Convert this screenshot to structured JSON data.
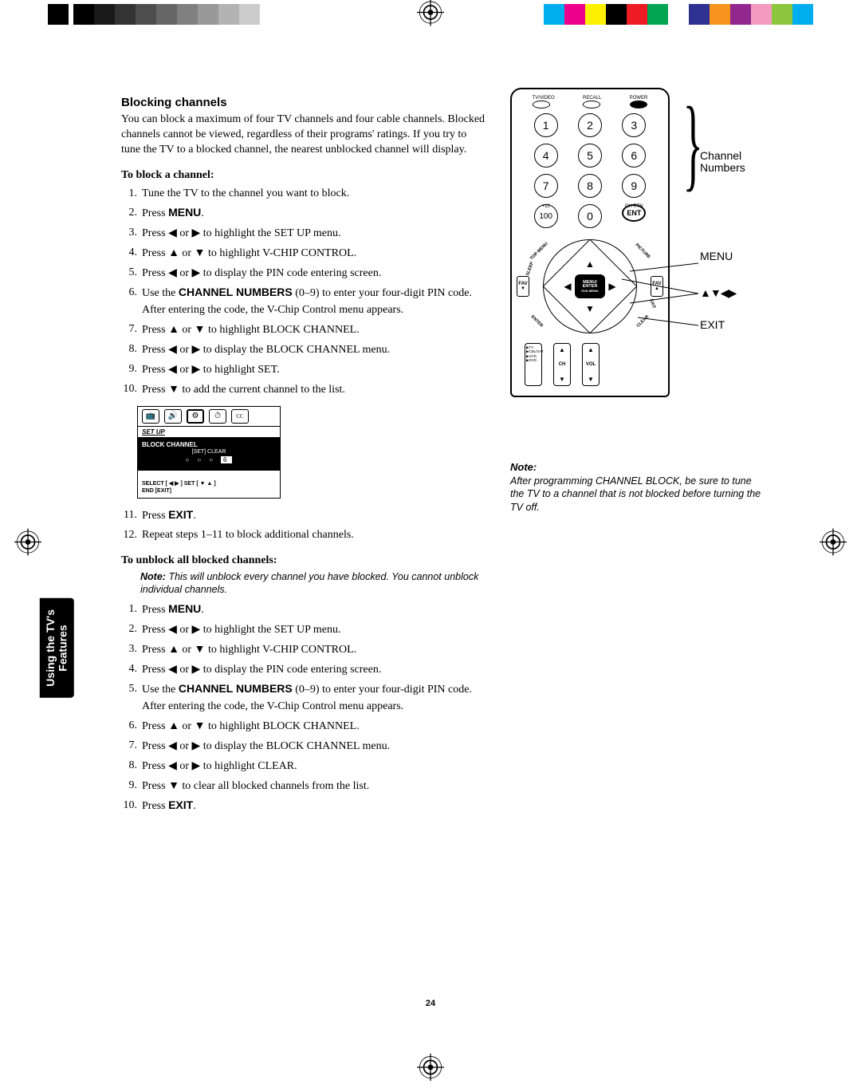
{
  "reg_colors": {
    "grays": [
      "#000000",
      "#1a1a1a",
      "#333333",
      "#4d4d4d",
      "#666666",
      "#808080",
      "#999999",
      "#b3b3b3",
      "#cccccc",
      "#ffffff"
    ],
    "hues": [
      "#00aeef",
      "#ec008c",
      "#fff200",
      "#000000",
      "#ed1c24",
      "#00a651",
      "#ffffff",
      "#2e3192",
      "#f7941d",
      "#92278f",
      "#f49ac1",
      "#8dc63f",
      "#00adee"
    ]
  },
  "heading": "Blocking channels",
  "intro": "You can block a maximum of four TV channels and four cable channels. Blocked channels cannot be viewed, regardless of their programs' ratings. If you try to tune the TV to a blocked channel, the nearest unblocked channel will display.",
  "block": {
    "subhead": "To block a channel:",
    "steps": [
      "Tune the TV to the channel you want to block.",
      "Press <span class='sans bold'>MENU</span>.",
      "Press <span class='arrow'>◀</span> or <span class='arrow'>▶</span> to highlight the SET UP menu.",
      "Press <span class='arrow'>▲</span> or <span class='arrow'>▼</span> to highlight V-CHIP CONTROL.",
      "Press <span class='arrow'>◀</span> or <span class='arrow'>▶</span> to display the PIN code entering screen.",
      "Use the <span class='sans bold'>CHANNEL NUMBERS</span> (0–9) to enter your four-digit PIN code. After entering the code, the V-Chip Control menu appears.",
      "Press <span class='arrow'>▲</span> or <span class='arrow'>▼</span> to highlight BLOCK CHANNEL.",
      "Press <span class='arrow'>◀</span> or <span class='arrow'>▶</span> to display the BLOCK CHANNEL menu.",
      "Press <span class='arrow'>◀</span> or <span class='arrow'>▶</span> to highlight SET.",
      "Press <span class='arrow'>▼</span> to add the current channel to the list."
    ],
    "steps_cont": [
      "Press <span class='sans bold'>EXIT</span>.",
      "Repeat steps 1–11 to block additional channels."
    ]
  },
  "osd": {
    "title": "SET UP",
    "row1": "BLOCK CHANNEL",
    "row2_pre": "[SET]  CLEAR",
    "row2_vals": [
      "○",
      "○",
      "○",
      "6"
    ],
    "foot1": "SELECT [ ◀  ▶ ]    SET [ ▼  ▲ ]",
    "foot2": "END [EXIT]"
  },
  "unblock": {
    "subhead": "To unblock all blocked channels:",
    "note": "This will unblock every channel you have blocked. You cannot unblock individual channels.",
    "steps": [
      "Press <span class='sans bold'>MENU</span>.",
      "Press <span class='arrow'>◀</span> or <span class='arrow'>▶</span> to highlight the SET UP menu.",
      "Press <span class='arrow'>▲</span> or <span class='arrow'>▼</span> to highlight V-CHIP CONTROL.",
      "Press <span class='arrow'>◀</span> or <span class='arrow'>▶</span> to display the PIN code entering screen.",
      "Use the <span class='sans bold'>CHANNEL NUMBERS</span> (0–9) to enter your four-digit PIN code. After entering the code, the V-Chip Control menu appears.",
      "Press <span class='arrow'>▲</span> or <span class='arrow'>▼</span> to highlight BLOCK CHANNEL.",
      "Press <span class='arrow'>◀</span> or <span class='arrow'>▶</span> to display the BLOCK CHANNEL menu.",
      "Press <span class='arrow'>◀</span> or <span class='arrow'>▶</span> to highlight CLEAR.",
      "Press <span class='arrow'>▼</span> to clear all blocked channels from the list.",
      "Press <span class='sans bold'>EXIT</span>."
    ]
  },
  "right_note": {
    "title": "Note:",
    "body": "After programming CHANNEL BLOCK, be sure to tune the TV to a channel that is not blocked before turning the TV off."
  },
  "remote": {
    "toplabels": [
      "TV/VIDEO",
      "RECALL",
      "POWER"
    ],
    "small_labels": {
      "plus10": "+10",
      "chrtn": "CH RTN"
    },
    "keypad": [
      "1",
      "2",
      "3",
      "4",
      "5",
      "6",
      "7",
      "8",
      "9",
      "100",
      "0",
      "ENT"
    ],
    "center": [
      "MENU/",
      "ENTER",
      "DVD MENU"
    ],
    "diag": {
      "tl": "TOP MENU",
      "tr": "PICTURE",
      "bl": "ENTER",
      "br": "CLEAR",
      "sl": "SLEEP",
      "sx": "EXIT"
    },
    "fav": "FAV",
    "selector": "▶TV\n▶CBL/SAT\n▶VCR\n▶DVD",
    "rockers": [
      {
        "mid": "CH"
      },
      {
        "mid": "VOL"
      }
    ]
  },
  "callouts": {
    "ch_numbers": "Channel\nNumbers",
    "menu": "MENU",
    "arrows": "▲▼◀▶",
    "exit": "EXIT"
  },
  "page_number": "24"
}
